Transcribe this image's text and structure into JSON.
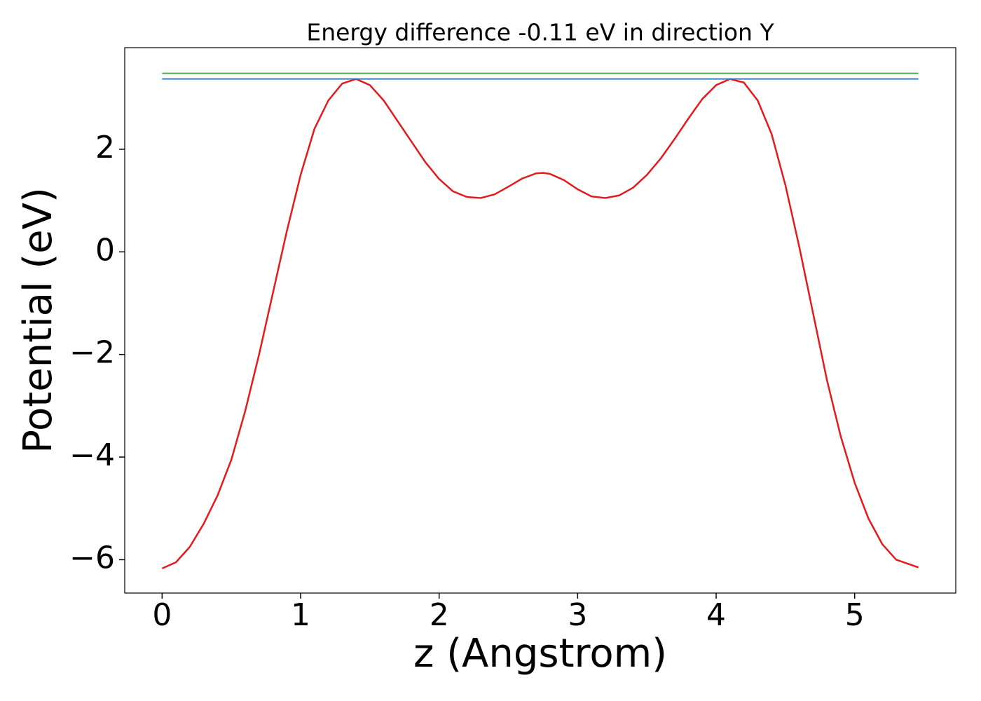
{
  "chart_data": {
    "type": "line",
    "title": "Energy difference -0.11 eV in direction Y",
    "x_label": "z (Angstrom)",
    "y_label": "Potential (eV)",
    "xlim": [
      -0.27,
      5.73
    ],
    "ylim": [
      -6.65,
      3.98
    ],
    "xticks": [
      0,
      1,
      2,
      3,
      4,
      5
    ],
    "yticks": [
      {
        "value": -6,
        "label": "−6"
      },
      {
        "value": -4,
        "label": "−4"
      },
      {
        "value": -2,
        "label": "−2"
      },
      0,
      2
    ],
    "series": [
      {
        "color": "#e41a1c",
        "x": [
          0,
          0.1,
          0.2,
          0.3,
          0.4,
          0.5,
          0.6,
          0.7,
          0.8,
          0.9,
          1.0,
          1.1,
          1.2,
          1.3,
          1.4,
          1.5,
          1.6,
          1.7,
          1.8,
          1.9,
          2.0,
          2.1,
          2.2,
          2.3,
          2.4,
          2.5,
          2.6,
          2.7,
          2.75,
          2.8,
          2.9,
          3.0,
          3.1,
          3.2,
          3.3,
          3.4,
          3.5,
          3.6,
          3.7,
          3.8,
          3.9,
          4.0,
          4.1,
          4.2,
          4.3,
          4.4,
          4.5,
          4.6,
          4.7,
          4.8,
          4.9,
          5.0,
          5.1,
          5.2,
          5.3,
          5.46
        ],
        "values": [
          -6.17,
          -6.05,
          -5.75,
          -5.3,
          -4.75,
          -4.05,
          -3.1,
          -2.0,
          -0.8,
          0.4,
          1.5,
          2.4,
          2.95,
          3.28,
          3.37,
          3.25,
          2.95,
          2.55,
          2.15,
          1.75,
          1.42,
          1.18,
          1.07,
          1.05,
          1.12,
          1.27,
          1.43,
          1.53,
          1.54,
          1.52,
          1.4,
          1.22,
          1.08,
          1.05,
          1.1,
          1.25,
          1.5,
          1.82,
          2.2,
          2.6,
          2.98,
          3.25,
          3.37,
          3.3,
          2.95,
          2.3,
          1.3,
          0.1,
          -1.2,
          -2.5,
          -3.6,
          -4.5,
          -5.2,
          -5.7,
          -6.0,
          -6.15
        ]
      },
      {
        "color": "#4daf4a",
        "x": [
          0,
          5.46
        ],
        "values": [
          3.48,
          3.48
        ]
      },
      {
        "color": "#377eb8",
        "x": [
          0,
          5.46
        ],
        "values": [
          3.37,
          3.37
        ]
      }
    ]
  }
}
